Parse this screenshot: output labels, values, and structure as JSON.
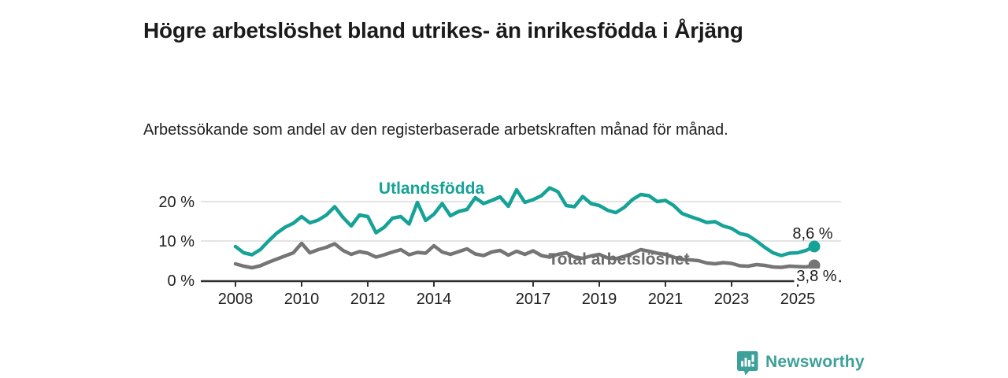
{
  "header": {},
  "chart_data": {
    "type": "line",
    "title": "Högre arbetslöshet bland utrikes- än inrikesfödda i Årjäng",
    "subtitle": "Arbetssökande som andel av den registerbaserade arbetskraften månad för månad.",
    "xlabel": "",
    "ylabel": "%",
    "ylim": [
      0,
      24
    ],
    "xlim": [
      2007.9,
      2026.3
    ],
    "grid": "horizontal-light",
    "legend": "inline-series-labels",
    "y_ticks": [
      {
        "value": 0,
        "label": "0 %"
      },
      {
        "value": 10,
        "label": "10 %"
      },
      {
        "value": 20,
        "label": "20 %"
      }
    ],
    "x_ticks": [
      {
        "value": 2008,
        "label": "2008"
      },
      {
        "value": 2010,
        "label": "2010"
      },
      {
        "value": 2012,
        "label": "2012"
      },
      {
        "value": 2014,
        "label": "2014"
      },
      {
        "value": 2017,
        "label": "2017"
      },
      {
        "value": 2019,
        "label": "2019"
      },
      {
        "value": 2021,
        "label": "2021"
      },
      {
        "value": 2023,
        "label": "2023"
      },
      {
        "value": 2025,
        "label": "2025"
      }
    ],
    "x_unit": "decimal-year (monthly rate sampled quarterly)",
    "x": [
      2008,
      2008.25,
      2008.5,
      2008.75,
      2009,
      2009.25,
      2009.5,
      2009.75,
      2010,
      2010.25,
      2010.5,
      2010.75,
      2011,
      2011.25,
      2011.5,
      2011.75,
      2012,
      2012.25,
      2012.5,
      2012.75,
      2013,
      2013.25,
      2013.5,
      2013.75,
      2014,
      2014.25,
      2014.5,
      2014.75,
      2015,
      2015.25,
      2015.5,
      2015.75,
      2016,
      2016.25,
      2016.5,
      2016.75,
      2017,
      2017.25,
      2017.5,
      2017.75,
      2018,
      2018.25,
      2018.5,
      2018.75,
      2019,
      2019.25,
      2019.5,
      2019.75,
      2020,
      2020.25,
      2020.5,
      2020.75,
      2021,
      2021.25,
      2021.5,
      2021.75,
      2022,
      2022.25,
      2022.5,
      2022.75,
      2023,
      2023.25,
      2023.5,
      2023.75,
      2024,
      2024.25,
      2024.5,
      2024.75,
      2025,
      2025.25,
      2025.5
    ],
    "series": [
      {
        "name": "Utlandsfödda",
        "color": "#16a296",
        "end_label": "8,6 %",
        "end_value": 8.6,
        "values": [
          8.6,
          7.0,
          6.5,
          7.8,
          10.0,
          12.0,
          13.5,
          14.5,
          16.2,
          14.6,
          15.3,
          16.6,
          18.7,
          16.0,
          13.8,
          16.6,
          16.2,
          12.1,
          13.5,
          15.8,
          16.2,
          14.3,
          19.8,
          15.2,
          16.8,
          19.5,
          16.4,
          17.5,
          18.0,
          21.0,
          19.5,
          20.3,
          21.2,
          18.8,
          23.0,
          19.8,
          20.5,
          21.5,
          23.5,
          22.5,
          19.0,
          18.7,
          21.3,
          19.5,
          19.0,
          17.8,
          17.2,
          18.5,
          20.5,
          21.8,
          21.5,
          20.0,
          20.3,
          19.0,
          17.0,
          16.2,
          15.5,
          14.7,
          14.9,
          13.8,
          13.2,
          11.9,
          11.4,
          10.0,
          8.4,
          7.0,
          6.3,
          6.9,
          7.0,
          7.6,
          8.6
        ]
      },
      {
        "name": "Total arbetslöshet",
        "color": "#757575",
        "end_label": "3,8 %",
        "end_value": 3.8,
        "values": [
          4.2,
          3.6,
          3.2,
          3.7,
          4.6,
          5.4,
          6.2,
          7.0,
          9.4,
          7.0,
          7.8,
          8.4,
          9.3,
          7.6,
          6.6,
          7.3,
          6.9,
          5.9,
          6.5,
          7.2,
          7.8,
          6.5,
          7.1,
          6.9,
          8.8,
          7.2,
          6.6,
          7.3,
          8.0,
          6.7,
          6.3,
          7.2,
          7.6,
          6.4,
          7.4,
          6.6,
          7.5,
          6.3,
          5.9,
          6.6,
          7.0,
          5.9,
          5.6,
          6.2,
          6.6,
          5.7,
          5.5,
          6.1,
          6.8,
          7.8,
          7.4,
          6.9,
          6.6,
          5.9,
          5.3,
          5.2,
          5.0,
          4.4,
          4.2,
          4.5,
          4.3,
          3.7,
          3.6,
          4.0,
          3.8,
          3.4,
          3.3,
          3.6,
          3.5,
          3.4,
          3.8
        ]
      }
    ]
  },
  "footer": {
    "brand": "Newsworthy",
    "logo_icon": "bar-chart-speech-bubble-icon",
    "brand_color": "#3da09a"
  }
}
